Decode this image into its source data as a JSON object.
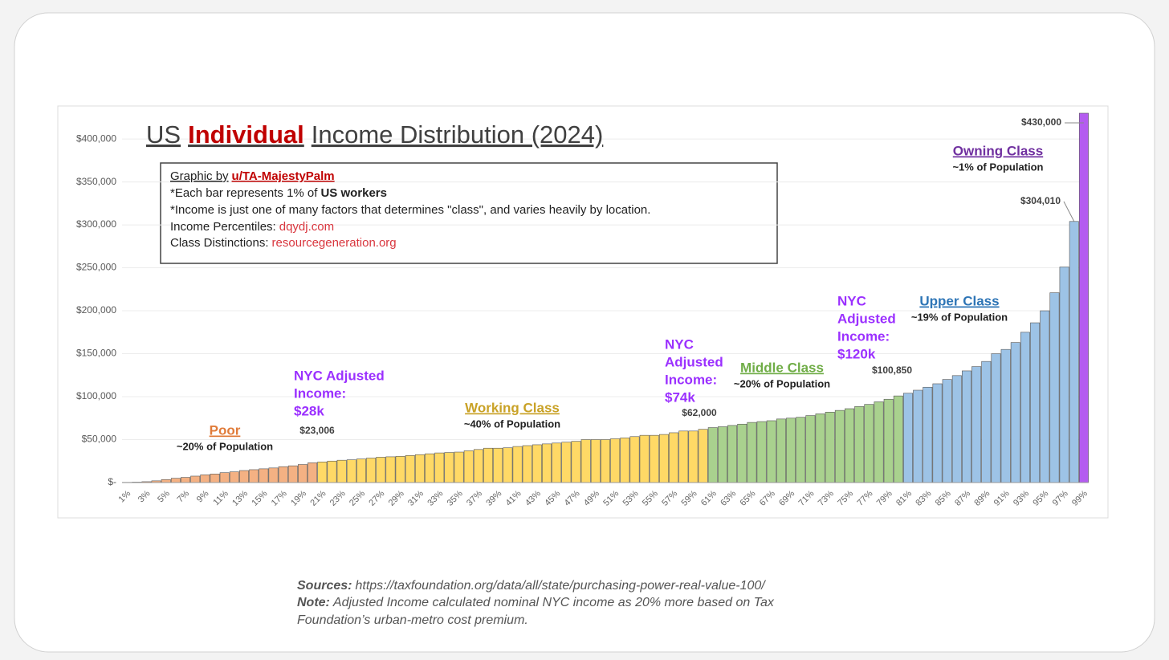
{
  "chart_data": {
    "type": "bar",
    "title_parts": [
      "US",
      "Individual",
      "Income Distribution (2024)"
    ],
    "info_box": {
      "credit": [
        "Graphic by",
        "u/TA-MajestyPalm"
      ],
      "bar_note": [
        "*Each bar represents 1% of",
        "US workers"
      ],
      "caveat": "*Income is just one of many factors that determines \"class\", and varies heavily by location.",
      "percentiles": [
        "Income Percentiles:",
        "dqydj.com"
      ],
      "classes": [
        "Class Distinctions:",
        "resourcegeneration.org"
      ]
    },
    "categories": [
      "1%",
      null,
      "3%",
      null,
      "5%",
      null,
      "7%",
      null,
      "9%",
      null,
      "11%",
      null,
      "13%",
      null,
      "15%",
      null,
      "17%",
      null,
      "19%",
      null,
      "21%",
      null,
      "23%",
      null,
      "25%",
      null,
      "27%",
      null,
      "29%",
      null,
      "31%",
      null,
      "33%",
      null,
      "35%",
      null,
      "37%",
      null,
      "39%",
      null,
      "41%",
      null,
      "43%",
      null,
      "45%",
      null,
      "47%",
      null,
      "49%",
      null,
      "51%",
      null,
      "53%",
      null,
      "55%",
      null,
      "57%",
      null,
      "59%",
      null,
      "61%",
      null,
      "63%",
      null,
      "65%",
      null,
      "67%",
      null,
      "69%",
      null,
      "71%",
      null,
      "73%",
      null,
      "75%",
      null,
      "77%",
      null,
      "79%",
      null,
      "81%",
      null,
      "83%",
      null,
      "85%",
      null,
      "87%",
      null,
      "89%",
      null,
      "91%",
      null,
      "93%",
      null,
      "95%",
      null,
      "97%",
      null,
      "99%"
    ],
    "values": [
      300,
      500,
      1000,
      2000,
      3500,
      5000,
      6000,
      7500,
      9000,
      10000,
      11500,
      12500,
      14000,
      15000,
      16000,
      17000,
      18500,
      19500,
      21000,
      23006,
      24000,
      25000,
      26000,
      26500,
      27500,
      28500,
      29500,
      30000,
      30500,
      31500,
      32500,
      33500,
      34500,
      35000,
      35500,
      37000,
      38500,
      40000,
      40000,
      40500,
      42000,
      43000,
      44000,
      45000,
      46000,
      47000,
      48000,
      50000,
      50000,
      50000,
      51000,
      52000,
      53500,
      55000,
      55000,
      56000,
      58000,
      60000,
      60000,
      62000,
      64000,
      65000,
      66500,
      68000,
      70000,
      71000,
      72000,
      74000,
      75000,
      76000,
      78000,
      80000,
      82000,
      84000,
      86000,
      88500,
      91000,
      94000,
      97000,
      100850,
      104000,
      107500,
      111000,
      115000,
      120000,
      124500,
      130000,
      135000,
      141000,
      150000,
      155000,
      163000,
      175000,
      186000,
      200000,
      221000,
      251000,
      304010,
      430000
    ],
    "value_labels": [
      null,
      null,
      null,
      null,
      null,
      null,
      null,
      null,
      null,
      null,
      null,
      null,
      null,
      null,
      null,
      null,
      null,
      null,
      null,
      "$23,006",
      null,
      null,
      null,
      null,
      null,
      null,
      null,
      null,
      null,
      null,
      null,
      null,
      null,
      null,
      null,
      null,
      null,
      null,
      null,
      null,
      null,
      null,
      null,
      null,
      null,
      null,
      null,
      null,
      null,
      null,
      null,
      null,
      null,
      null,
      null,
      null,
      null,
      null,
      null,
      "$62,000",
      null,
      null,
      null,
      null,
      null,
      null,
      null,
      null,
      null,
      null,
      null,
      null,
      null,
      null,
      null,
      null,
      null,
      null,
      null,
      "$100,850",
      null,
      null,
      null,
      null,
      null,
      null,
      null,
      null,
      null,
      null,
      null,
      null,
      null,
      null,
      null,
      null,
      null,
      "$304,010",
      "$430,000"
    ],
    "bar_colors": [
      "#f4b183",
      "#f4b183",
      "#f4b183",
      "#f4b183",
      "#f4b183",
      "#f4b183",
      "#f4b183",
      "#f4b183",
      "#f4b183",
      "#f4b183",
      "#f4b183",
      "#f4b183",
      "#f4b183",
      "#f4b183",
      "#f4b183",
      "#f4b183",
      "#f4b183",
      "#f4b183",
      "#f4b183",
      "#f4b183",
      "#ffd966",
      "#ffd966",
      "#ffd966",
      "#ffd966",
      "#ffd966",
      "#ffd966",
      "#ffd966",
      "#ffd966",
      "#ffd966",
      "#ffd966",
      "#ffd966",
      "#ffd966",
      "#ffd966",
      "#ffd966",
      "#ffd966",
      "#ffd966",
      "#ffd966",
      "#ffd966",
      "#ffd966",
      "#ffd966",
      "#ffd966",
      "#ffd966",
      "#ffd966",
      "#ffd966",
      "#ffd966",
      "#ffd966",
      "#ffd966",
      "#ffd966",
      "#ffd966",
      "#ffd966",
      "#ffd966",
      "#ffd966",
      "#ffd966",
      "#ffd966",
      "#ffd966",
      "#ffd966",
      "#ffd966",
      "#ffd966",
      "#ffd966",
      "#ffd966",
      "#a9d18e",
      "#a9d18e",
      "#a9d18e",
      "#a9d18e",
      "#a9d18e",
      "#a9d18e",
      "#a9d18e",
      "#a9d18e",
      "#a9d18e",
      "#a9d18e",
      "#a9d18e",
      "#a9d18e",
      "#a9d18e",
      "#a9d18e",
      "#a9d18e",
      "#a9d18e",
      "#a9d18e",
      "#a9d18e",
      "#a9d18e",
      "#a9d18e",
      "#9dc3e6",
      "#9dc3e6",
      "#9dc3e6",
      "#9dc3e6",
      "#9dc3e6",
      "#9dc3e6",
      "#9dc3e6",
      "#9dc3e6",
      "#9dc3e6",
      "#9dc3e6",
      "#9dc3e6",
      "#9dc3e6",
      "#9dc3e6",
      "#9dc3e6",
      "#9dc3e6",
      "#9dc3e6",
      "#9dc3e6",
      "#9dc3e6",
      "#b45cf0"
    ],
    "ylim": [
      0,
      430000
    ],
    "yticks": [
      {
        "value": 0,
        "label": "$-"
      },
      {
        "value": 50000,
        "label": "$50,000"
      },
      {
        "value": 100000,
        "label": "$100,000"
      },
      {
        "value": 150000,
        "label": "$150,000"
      },
      {
        "value": 200000,
        "label": "$200,000"
      },
      {
        "value": 250000,
        "label": "$250,000"
      },
      {
        "value": 300000,
        "label": "$300,000"
      },
      {
        "value": 350000,
        "label": "$350,000"
      },
      {
        "value": 400000,
        "label": "$400,000"
      }
    ],
    "grid": true,
    "class_labels": [
      {
        "name": "Poor",
        "note": "~20% of Population",
        "color": "#e07b39"
      },
      {
        "name": "Working Class",
        "note": "~40% of Population",
        "color": "#c9a227"
      },
      {
        "name": "Middle Class",
        "note": "~20% of Population",
        "color": "#70ad47"
      },
      {
        "name": "Upper Class",
        "note": "~19% of Population",
        "color": "#2e75b6"
      },
      {
        "name": "Owning Class",
        "note": "~1% of Population",
        "color": "#7030a0"
      }
    ],
    "nyc_notes": [
      [
        "NYC Adjusted",
        "Income:",
        "$28k"
      ],
      [
        "NYC",
        "Adjusted",
        "Income:",
        "$74k"
      ],
      [
        "NYC",
        "Adjusted",
        "Income:",
        "$120k"
      ]
    ],
    "nyc_color": "#9b30ff"
  },
  "footer": {
    "sources": [
      "Sources:",
      "https://taxfoundation.org/data/all/state/purchasing-power-real-value-100/"
    ],
    "note": [
      "Note:",
      "Adjusted Income calculated nominal NYC income as 20% more based on Tax",
      "Foundation’s urban-metro cost premium."
    ]
  }
}
